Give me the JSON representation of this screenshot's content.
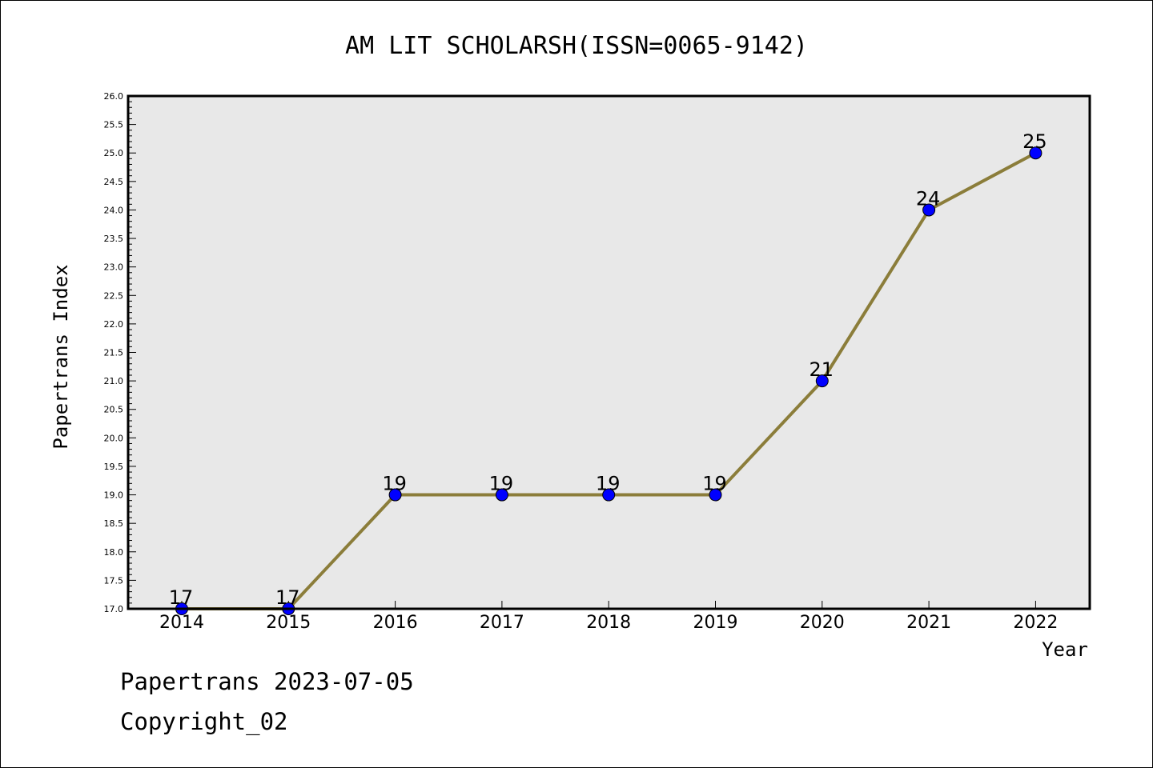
{
  "chart_data": {
    "type": "line",
    "title": "AM LIT SCHOLARSH(ISSN=0065-9142)",
    "xlabel": "Year",
    "ylabel": "Papertrans Index",
    "categories": [
      "2014",
      "2015",
      "2016",
      "2017",
      "2018",
      "2019",
      "2020",
      "2021",
      "2022"
    ],
    "values": [
      17,
      17,
      19,
      19,
      19,
      19,
      21,
      24,
      25
    ],
    "data_labels": [
      "17",
      "17",
      "19",
      "19",
      "19",
      "19",
      "21",
      "24",
      "25"
    ],
    "yticks": [
      "17.0",
      "17.5",
      "18.0",
      "18.5",
      "19.0",
      "19.5",
      "20.0",
      "20.5",
      "21.0",
      "21.5",
      "22.0",
      "22.5",
      "23.0",
      "23.5",
      "24.0",
      "24.5",
      "25.0",
      "25.5",
      "26.0"
    ],
    "ylim": [
      17.0,
      26.0
    ],
    "grid": false,
    "colors": {
      "line": "#8b7d3a",
      "marker": "#0000ff",
      "plot_bg": "#e8e8e8"
    }
  },
  "footer": {
    "line1": "Papertrans 2023-07-05",
    "line2": "Copyright_02"
  }
}
